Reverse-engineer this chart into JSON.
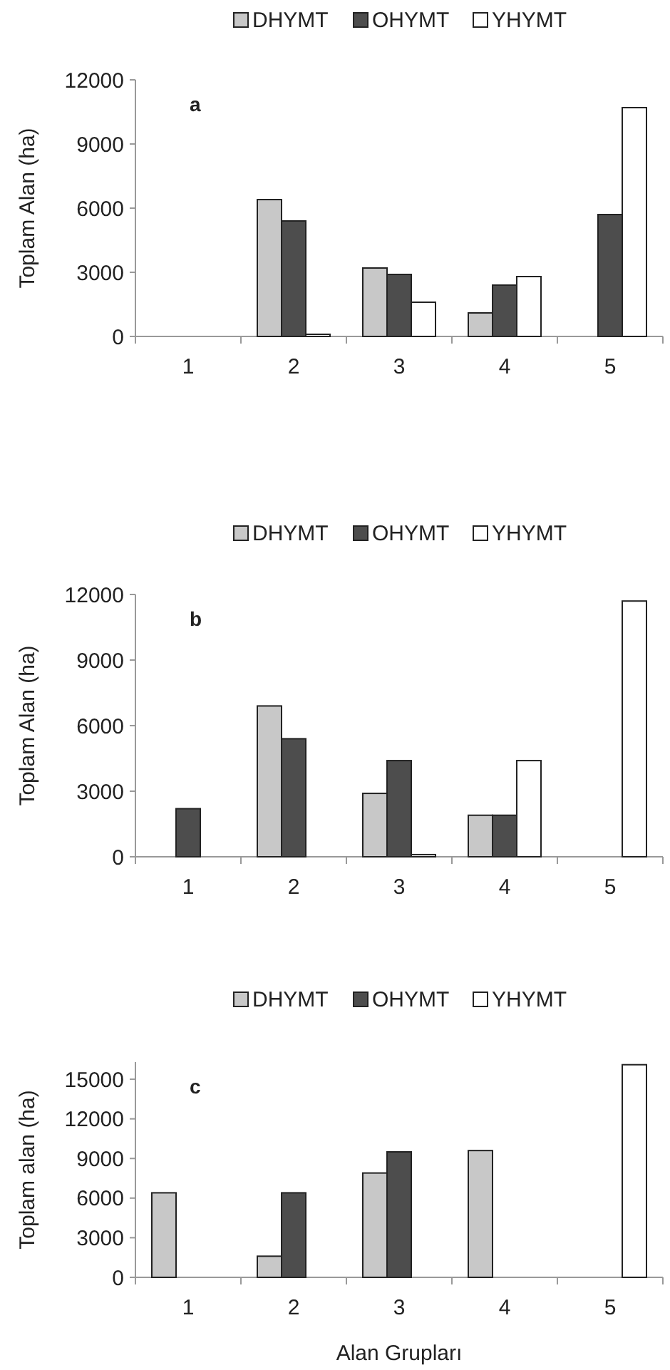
{
  "chart_data": [
    {
      "type": "bar",
      "title": "a",
      "ylabel": "Toplam Alan (ha)",
      "categories": [
        "1",
        "2",
        "3",
        "4",
        "5"
      ],
      "ylim": [
        0,
        12000
      ],
      "yticks": [
        0,
        3000,
        6000,
        9000,
        12000
      ],
      "legend": "top",
      "grid": false,
      "series": [
        {
          "name": "DHYMT",
          "color": "#c8c8c8",
          "values": [
            0,
            6400,
            3200,
            1100,
            0
          ]
        },
        {
          "name": "OHYMT",
          "color": "#4d4d4d",
          "values": [
            0,
            5400,
            2900,
            2400,
            5700
          ]
        },
        {
          "name": "YHYMT",
          "color": "#ffffff",
          "values": [
            0,
            100,
            1600,
            2800,
            10700
          ]
        }
      ]
    },
    {
      "type": "bar",
      "title": "b",
      "ylabel": "Toplam Alan (ha)",
      "categories": [
        "1",
        "2",
        "3",
        "4",
        "5"
      ],
      "ylim": [
        0,
        12000
      ],
      "yticks": [
        0,
        3000,
        6000,
        9000,
        12000
      ],
      "legend": "top",
      "grid": false,
      "series": [
        {
          "name": "DHYMT",
          "color": "#c8c8c8",
          "values": [
            0,
            6900,
            2900,
            1900,
            0
          ]
        },
        {
          "name": "OHYMT",
          "color": "#4d4d4d",
          "values": [
            2200,
            5400,
            4400,
            1900,
            0
          ]
        },
        {
          "name": "YHYMT",
          "color": "#ffffff",
          "values": [
            0,
            0,
            100,
            4400,
            11700
          ]
        }
      ]
    },
    {
      "type": "bar",
      "title": "c",
      "xlabel": "Alan Grupları",
      "ylabel": "Toplam alan (ha)",
      "categories": [
        "1",
        "2",
        "3",
        "4",
        "5"
      ],
      "ylim": [
        0,
        16300
      ],
      "yticks": [
        0,
        3000,
        6000,
        9000,
        12000,
        15000
      ],
      "legend": "top",
      "grid": false,
      "series": [
        {
          "name": "DHYMT",
          "color": "#c8c8c8",
          "values": [
            6400,
            1600,
            7900,
            9600,
            0
          ]
        },
        {
          "name": "OHYMT",
          "color": "#4d4d4d",
          "values": [
            0,
            6400,
            9500,
            0,
            0
          ]
        },
        {
          "name": "YHYMT",
          "color": "#ffffff",
          "values": [
            0,
            0,
            0,
            0,
            16100
          ]
        }
      ]
    }
  ]
}
